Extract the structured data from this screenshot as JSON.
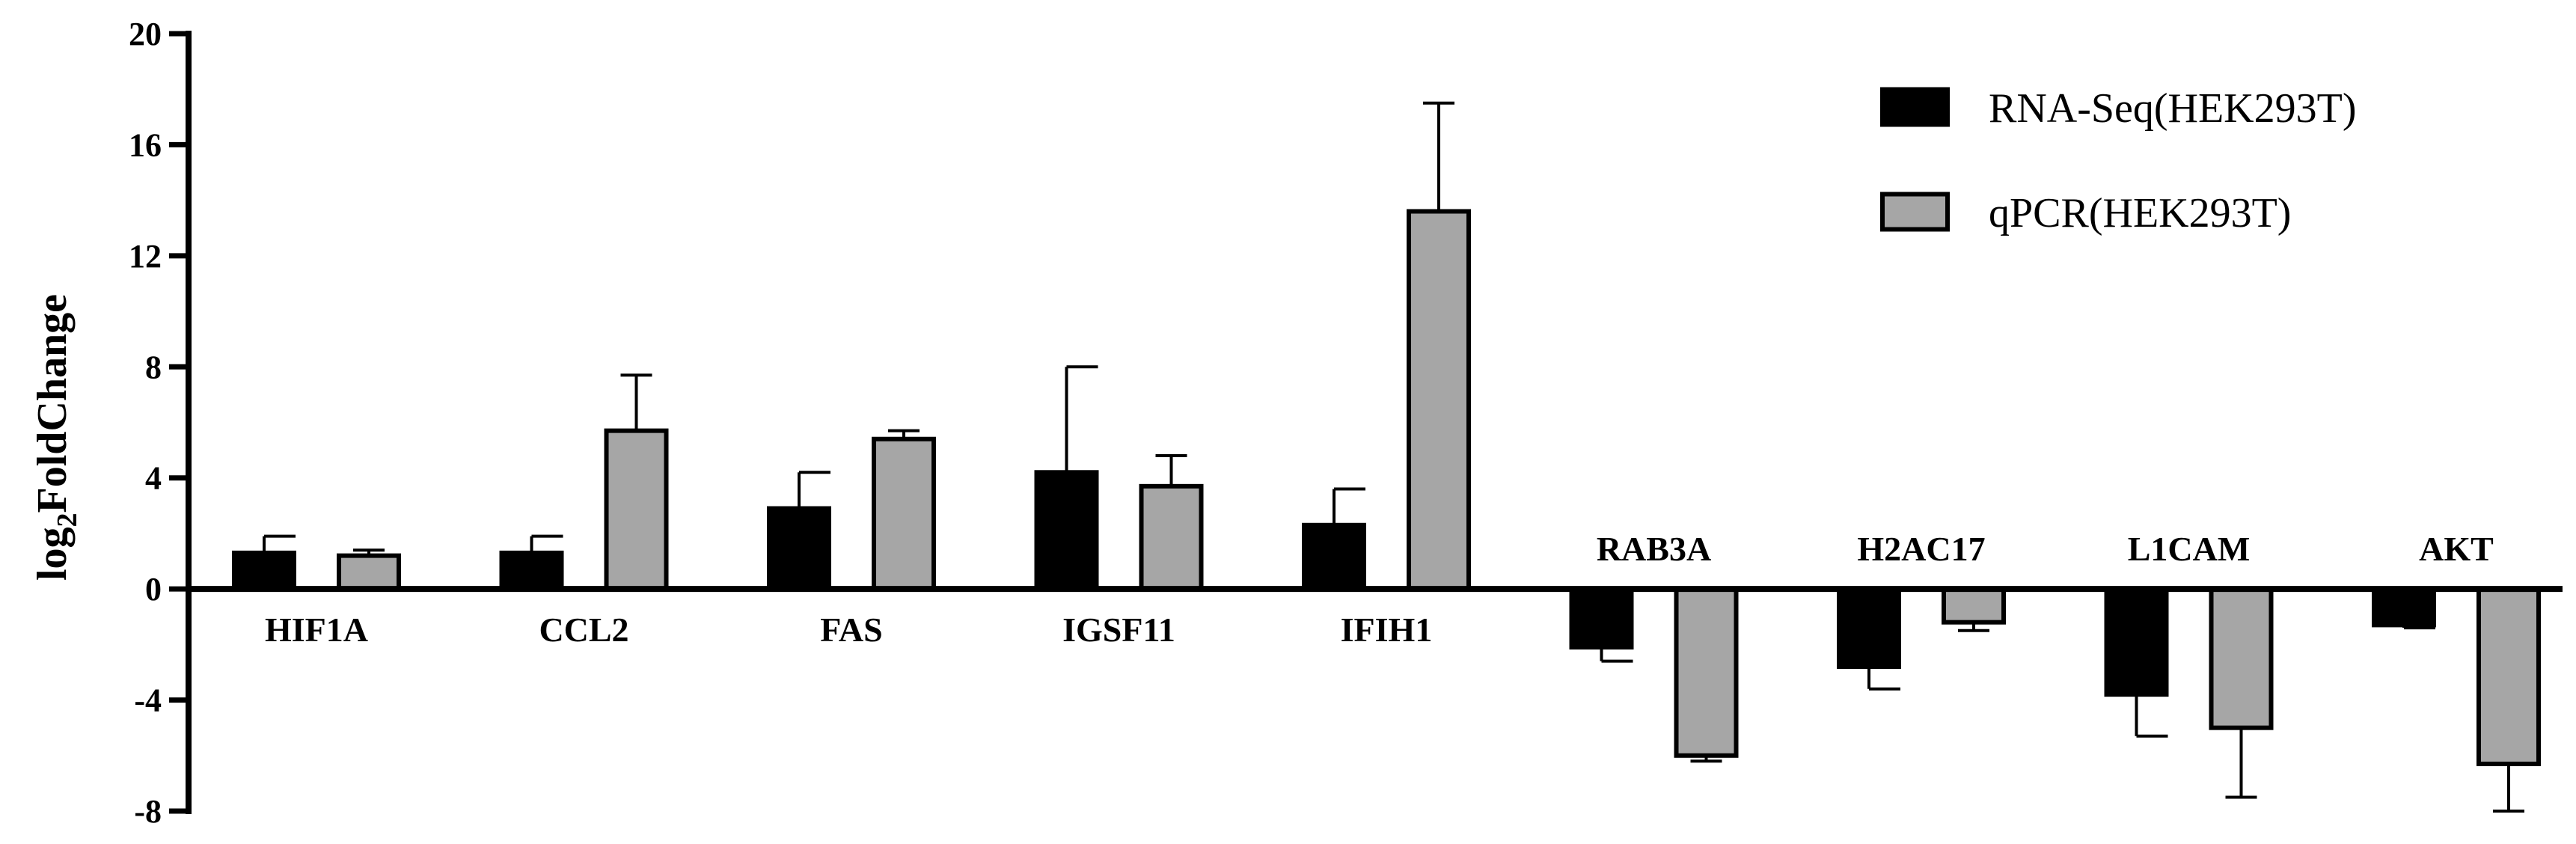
{
  "chart_data": {
    "type": "bar",
    "title": "",
    "xlabel": "",
    "ylabel": "log2FoldChange",
    "ylabel_main": "log",
    "ylabel_sub": "2",
    "ylabel_rest": "FoldChange",
    "ylim": [
      -8,
      20
    ],
    "yticks": [
      -8,
      -4,
      0,
      4,
      8,
      12,
      16,
      20
    ],
    "ytick_labels": [
      "-8",
      "-4",
      "0",
      "4",
      "8",
      "12",
      "16",
      "20"
    ],
    "categories": [
      "HIF1A",
      "CCL2",
      "FAS",
      "IGSF11",
      "IFIH1",
      "RAB3A",
      "H2AC17",
      "L1CAM",
      "AKT"
    ],
    "series": [
      {
        "name": "RNA-Seq(HEK293T)",
        "color": "#000000",
        "values": [
          1.3,
          1.3,
          2.9,
          4.2,
          2.3,
          -2.1,
          -2.8,
          -3.8,
          -1.3
        ],
        "errors": [
          0.6,
          0.6,
          1.3,
          3.8,
          1.3,
          0.5,
          0.8,
          1.5,
          0.1
        ]
      },
      {
        "name": "qPCR(HEK293T)",
        "color": "#a6a6a6",
        "values": [
          1.2,
          5.7,
          5.4,
          3.7,
          13.6,
          -6.0,
          -1.2,
          -5.0,
          -6.3
        ],
        "errors": [
          0.2,
          2.0,
          0.3,
          1.1,
          3.9,
          0.2,
          0.3,
          2.5,
          1.7
        ]
      }
    ],
    "grid": false,
    "legend_position": "top-right"
  }
}
